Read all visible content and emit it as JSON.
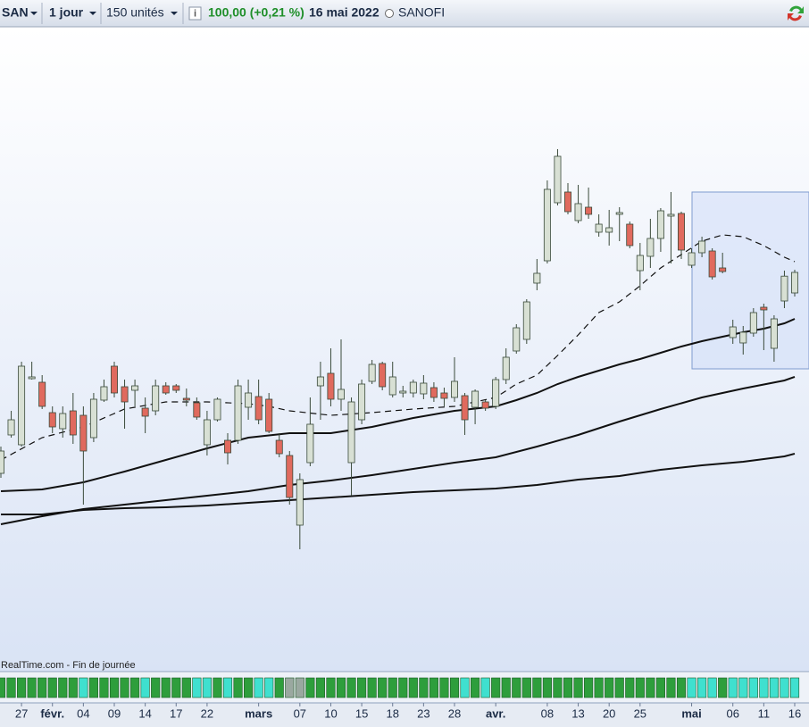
{
  "header": {
    "symbol": "SAN",
    "period": "1 jour",
    "units": "150 unités",
    "quote": "100,00 (+0,21 %)",
    "date": "16 mai 2022",
    "name": "SANOFI"
  },
  "source": "RealTime.com - Fin de journée",
  "chart_data": {
    "type": "candlestick",
    "categories": [
      null,
      null,
      "27",
      null,
      null,
      "févr.",
      null,
      null,
      "04",
      null,
      null,
      "09",
      null,
      null,
      "14",
      null,
      null,
      "17",
      null,
      null,
      "22",
      null,
      null,
      null,
      null,
      "mars",
      null,
      null,
      null,
      "07",
      null,
      null,
      "10",
      null,
      null,
      "15",
      null,
      null,
      "18",
      null,
      null,
      "23",
      null,
      null,
      "28",
      null,
      null,
      null,
      "avr.",
      null,
      null,
      null,
      null,
      "08",
      null,
      null,
      "13",
      null,
      null,
      "20",
      null,
      null,
      "25",
      null,
      null,
      null,
      null,
      "mai",
      null,
      null,
      null,
      "06",
      null,
      null,
      "11",
      null,
      null,
      "16"
    ],
    "open": [
      88.75,
      90.9,
      90.35,
      94.05,
      93.85,
      92.15,
      91.25,
      92.25,
      92.0,
      90.75,
      92.85,
      94.75,
      93.6,
      93.4,
      92.4,
      92.25,
      93.65,
      93.65,
      92.95,
      92.7,
      90.35,
      91.75,
      90.6,
      90.6,
      92.45,
      93.05,
      92.9,
      90.6,
      89.75,
      85.85,
      89.35,
      93.65,
      94.35,
      92.9,
      89.35,
      91.75,
      93.9,
      94.9,
      93.15,
      93.25,
      93.25,
      93.2,
      93.55,
      93.25,
      93.0,
      93.1,
      92.45,
      92.75,
      92.5,
      94.0,
      95.6,
      96.25,
      99.4,
      100.65,
      103.9,
      104.5,
      102.9,
      103.65,
      102.25,
      102.25,
      103.25,
      102.7,
      100.1,
      100.9,
      101.9,
      103.15,
      103.3,
      100.4,
      101.1,
      101.2,
      100.25,
      96.35,
      96.05,
      96.6,
      98.05,
      95.75,
      98.4,
      98.85
    ],
    "high": [
      90.25,
      92.25,
      95.0,
      95.0,
      94.25,
      92.5,
      92.5,
      93.25,
      92.5,
      93.25,
      94.0,
      95.0,
      94.0,
      94.0,
      93.0,
      94.0,
      93.85,
      93.75,
      93.5,
      93.0,
      92.25,
      93.0,
      91.0,
      94.0,
      94.0,
      94.0,
      93.25,
      91.0,
      90.0,
      88.75,
      93.0,
      95.0,
      95.75,
      96.25,
      93.0,
      94.0,
      95.1,
      95.0,
      95.0,
      93.65,
      94.0,
      94.25,
      93.85,
      93.55,
      95.25,
      93.25,
      93.45,
      92.85,
      94.15,
      95.75,
      97.1,
      98.5,
      100.75,
      105.15,
      106.9,
      105.0,
      104.9,
      104.75,
      103.25,
      103.5,
      103.65,
      102.85,
      101.65,
      103.0,
      103.6,
      104.5,
      103.4,
      101.35,
      102.0,
      101.35,
      101.1,
      97.35,
      97.0,
      98.0,
      98.25,
      97.6,
      100.1,
      100.15
    ],
    "low": [
      88.5,
      90.75,
      90.25,
      94.0,
      92.35,
      91.0,
      90.75,
      90.4,
      87.0,
      90.5,
      92.75,
      93.0,
      91.25,
      92.5,
      91.0,
      92.0,
      93.15,
      93.25,
      92.5,
      91.75,
      89.75,
      91.65,
      89.25,
      90.4,
      91.75,
      91.5,
      91.0,
      89.65,
      87.0,
      84.5,
      89.15,
      91.75,
      92.5,
      92.25,
      87.5,
      91.5,
      93.75,
      93.4,
      93.0,
      93.0,
      93.0,
      92.9,
      92.75,
      92.5,
      92.75,
      90.9,
      91.5,
      92.25,
      92.35,
      93.75,
      95.45,
      96.0,
      99.0,
      100.5,
      103.75,
      103.25,
      102.75,
      103.0,
      102.0,
      101.5,
      101.75,
      101.35,
      99.0,
      100.25,
      101.15,
      100.5,
      100.75,
      100.25,
      100.85,
      99.6,
      99.95,
      96.0,
      95.4,
      96.4,
      95.65,
      95.0,
      98.0,
      98.65
    ],
    "close": [
      90.0,
      91.75,
      94.75,
      94.15,
      92.5,
      91.35,
      92.1,
      90.9,
      90.0,
      92.9,
      93.6,
      93.25,
      92.75,
      93.65,
      91.95,
      93.65,
      93.25,
      93.4,
      92.85,
      91.9,
      91.75,
      92.9,
      89.9,
      93.65,
      93.25,
      91.75,
      91.1,
      89.85,
      87.4,
      88.4,
      91.5,
      94.15,
      92.9,
      93.45,
      92.75,
      93.75,
      94.85,
      93.6,
      94.15,
      93.35,
      93.85,
      93.8,
      93.0,
      92.95,
      93.9,
      91.75,
      93.35,
      92.4,
      94.0,
      95.25,
      96.9,
      98.35,
      99.95,
      104.65,
      106.5,
      103.4,
      103.85,
      103.25,
      102.7,
      102.5,
      103.35,
      101.5,
      100.95,
      101.9,
      103.45,
      103.25,
      101.25,
      101.1,
      101.75,
      99.75,
      100.05,
      96.95,
      96.65,
      97.75,
      97.9,
      97.4,
      99.79,
      100.0
    ],
    "up_color": "#d8e0d4",
    "down_color": "#e06a5e",
    "ylim": [
      77.75,
      113.75
    ],
    "overlays": [
      {
        "color": "#111111",
        "dashed": true,
        "x": [
          0,
          4,
          8,
          12,
          16,
          20,
          24,
          26,
          28,
          32,
          36,
          40,
          44,
          48,
          50,
          52,
          54,
          56,
          58,
          60,
          62,
          64,
          66,
          68,
          70,
          72,
          74,
          76,
          77
        ],
        "values": [
          89.5,
          90.75,
          91.35,
          92.35,
          92.75,
          92.75,
          92.65,
          92.5,
          92.25,
          92.0,
          92.15,
          92.35,
          92.5,
          93.0,
          93.75,
          94.25,
          95.35,
          96.5,
          97.75,
          98.35,
          99.25,
          100.25,
          101.0,
          101.75,
          102.1,
          102.0,
          101.5,
          100.85,
          100.6
        ]
      },
      {
        "color": "#111111",
        "dashed": false,
        "x": [
          0,
          4,
          8,
          12,
          16,
          20,
          24,
          28,
          32,
          36,
          40,
          44,
          48,
          50,
          52,
          54,
          56,
          58,
          60,
          62,
          64,
          66,
          68,
          70,
          72,
          74,
          76,
          77
        ],
        "values": [
          87.75,
          87.85,
          88.25,
          88.85,
          89.5,
          90.15,
          90.75,
          91.0,
          91.0,
          91.35,
          91.85,
          92.25,
          92.5,
          92.85,
          93.25,
          93.75,
          94.15,
          94.5,
          94.85,
          95.15,
          95.5,
          95.85,
          96.15,
          96.4,
          96.65,
          96.85,
          97.15,
          97.4
        ]
      },
      {
        "color": "#111111",
        "dashed": false,
        "x": [
          0,
          4,
          8,
          12,
          16,
          20,
          24,
          28,
          32,
          36,
          40,
          44,
          48,
          52,
          56,
          60,
          64,
          68,
          72,
          76,
          77
        ],
        "values": [
          85.9,
          86.35,
          86.75,
          87.0,
          87.25,
          87.5,
          87.75,
          88.1,
          88.35,
          88.65,
          89.0,
          89.35,
          89.65,
          90.25,
          90.9,
          91.65,
          92.35,
          93.0,
          93.5,
          93.95,
          94.15
        ]
      },
      {
        "color": "#111111",
        "dashed": false,
        "x": [
          0,
          4,
          8,
          12,
          16,
          20,
          24,
          28,
          32,
          36,
          40,
          44,
          48,
          52,
          56,
          60,
          64,
          68,
          72,
          76,
          77
        ],
        "values": [
          86.45,
          86.45,
          86.7,
          86.8,
          86.85,
          86.95,
          87.1,
          87.25,
          87.4,
          87.55,
          87.7,
          87.8,
          87.9,
          88.1,
          88.4,
          88.6,
          88.95,
          89.2,
          89.4,
          89.7,
          89.85
        ]
      }
    ],
    "strip_colors": [
      "#2e9e3c",
      "#2e9e3c",
      "#2e9e3c",
      "#2e9e3c",
      "#2e9e3c",
      "#2e9e3c",
      "#2e9e3c",
      "#2e9e3c",
      "#3fe0cf",
      "#2e9e3c",
      "#2e9e3c",
      "#2e9e3c",
      "#2e9e3c",
      "#2e9e3c",
      "#3fe0cf",
      "#2e9e3c",
      "#2e9e3c",
      "#2e9e3c",
      "#2e9e3c",
      "#3fe0cf",
      "#3fe0cf",
      "#2e9e3c",
      "#3fe0cf",
      "#2e9e3c",
      "#2e9e3c",
      "#3fe0cf",
      "#3fe0cf",
      "#2e9e3c",
      "#9aa8a0",
      "#9aa8a0",
      "#2e9e3c",
      "#2e9e3c",
      "#2e9e3c",
      "#2e9e3c",
      "#2e9e3c",
      "#2e9e3c",
      "#2e9e3c",
      "#2e9e3c",
      "#2e9e3c",
      "#2e9e3c",
      "#2e9e3c",
      "#2e9e3c",
      "#2e9e3c",
      "#2e9e3c",
      "#2e9e3c",
      "#3fe0cf",
      "#2e9e3c",
      "#3fe0cf",
      "#2e9e3c",
      "#2e9e3c",
      "#2e9e3c",
      "#2e9e3c",
      "#2e9e3c",
      "#2e9e3c",
      "#2e9e3c",
      "#2e9e3c",
      "#2e9e3c",
      "#2e9e3c",
      "#2e9e3c",
      "#2e9e3c",
      "#2e9e3c",
      "#2e9e3c",
      "#2e9e3c",
      "#2e9e3c",
      "#2e9e3c",
      "#2e9e3c",
      "#2e9e3c",
      "#3fe0cf",
      "#3fe0cf",
      "#3fe0cf",
      "#2e9e3c",
      "#3fe0cf",
      "#3fe0cf",
      "#3fe0cf",
      "#3fe0cf",
      "#3fe0cf",
      "#3fe0cf",
      "#3fe0cf"
    ]
  }
}
